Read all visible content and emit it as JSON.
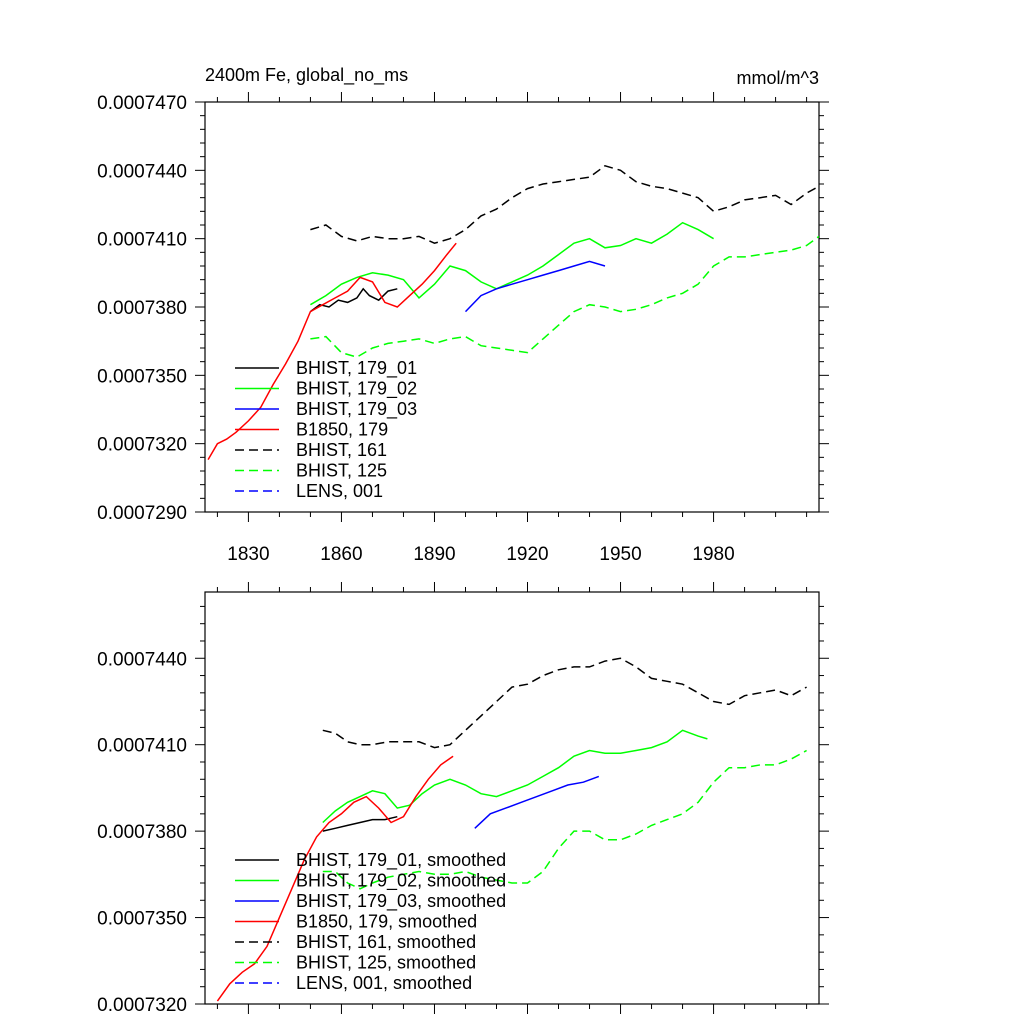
{
  "chart_data": [
    {
      "type": "line",
      "title": "2400m Fe, global_no_ms",
      "units": "mmol/m^3",
      "xlim": [
        1816,
        2014
      ],
      "ylim": [
        0.000729,
        0.000747
      ],
      "x_ticks": [
        1830,
        1860,
        1890,
        1920,
        1950,
        1980
      ],
      "x_tick_labels": [
        "1830",
        "1860",
        "1890",
        "1920",
        "1950",
        "1980"
      ],
      "y_ticks": [
        0.000729,
        0.000732,
        0.000735,
        0.000738,
        0.000741,
        0.000744,
        0.000747
      ],
      "y_tick_labels": [
        "0.0007290",
        "0.0007320",
        "0.0007350",
        "0.0007380",
        "0.0007410",
        "0.0007440",
        "0.0007470"
      ],
      "legend_position": "bottom-left",
      "series": [
        {
          "name": "BHIST, 179_01",
          "color": "#000000",
          "dash": "solid",
          "x": [
            1850,
            1853,
            1856,
            1859,
            1862,
            1865,
            1867,
            1869,
            1872,
            1875,
            1878
          ],
          "y": [
            0.0007378,
            0.0007381,
            0.000738,
            0.0007383,
            0.0007382,
            0.0007384,
            0.0007388,
            0.0007385,
            0.0007383,
            0.0007387,
            0.0007388
          ]
        },
        {
          "name": "BHIST, 179_02",
          "color": "#00ff00",
          "dash": "solid",
          "x": [
            1850,
            1855,
            1860,
            1865,
            1870,
            1875,
            1880,
            1885,
            1890,
            1895,
            1900,
            1905,
            1910,
            1915,
            1920,
            1925,
            1930,
            1935,
            1940,
            1945,
            1950,
            1955,
            1960,
            1965,
            1970,
            1975,
            1980
          ],
          "y": [
            0.0007381,
            0.0007385,
            0.000739,
            0.0007393,
            0.0007395,
            0.0007394,
            0.0007392,
            0.0007384,
            0.000739,
            0.0007398,
            0.0007396,
            0.0007391,
            0.0007388,
            0.0007391,
            0.0007394,
            0.0007398,
            0.0007403,
            0.0007408,
            0.000741,
            0.0007406,
            0.0007407,
            0.000741,
            0.0007408,
            0.0007412,
            0.0007417,
            0.0007414,
            0.000741
          ]
        },
        {
          "name": "BHIST, 179_03",
          "color": "#0000ff",
          "dash": "solid",
          "x": [
            1900,
            1905,
            1910,
            1915,
            1920,
            1925,
            1930,
            1935,
            1940,
            1945
          ],
          "y": [
            0.0007378,
            0.0007385,
            0.0007388,
            0.000739,
            0.0007392,
            0.0007394,
            0.0007396,
            0.0007398,
            0.00074,
            0.0007398
          ]
        },
        {
          "name": "B1850, 179",
          "color": "#ff0000",
          "dash": "solid",
          "x": [
            1817,
            1820,
            1823,
            1826,
            1830,
            1834,
            1838,
            1842,
            1846,
            1850,
            1854,
            1858,
            1862,
            1866,
            1870,
            1874,
            1878,
            1882,
            1886,
            1890,
            1894,
            1897
          ],
          "y": [
            0.0007313,
            0.000732,
            0.0007322,
            0.0007325,
            0.000733,
            0.0007336,
            0.0007346,
            0.0007355,
            0.0007365,
            0.0007378,
            0.0007381,
            0.0007384,
            0.0007387,
            0.0007393,
            0.0007391,
            0.0007382,
            0.000738,
            0.0007385,
            0.000739,
            0.0007396,
            0.0007403,
            0.0007408
          ]
        },
        {
          "name": "BHIST, 161",
          "color": "#000000",
          "dash": "dashed",
          "x": [
            1850,
            1855,
            1860,
            1865,
            1870,
            1875,
            1880,
            1885,
            1890,
            1895,
            1900,
            1905,
            1910,
            1915,
            1920,
            1925,
            1930,
            1935,
            1940,
            1945,
            1950,
            1955,
            1960,
            1965,
            1970,
            1975,
            1980,
            1985,
            1990,
            1995,
            2000,
            2005,
            2010,
            2014
          ],
          "y": [
            0.0007414,
            0.0007416,
            0.0007411,
            0.0007409,
            0.0007411,
            0.000741,
            0.000741,
            0.0007411,
            0.0007408,
            0.000741,
            0.0007414,
            0.000742,
            0.0007423,
            0.0007428,
            0.0007432,
            0.0007434,
            0.0007435,
            0.0007436,
            0.0007437,
            0.0007442,
            0.000744,
            0.0007435,
            0.0007433,
            0.0007432,
            0.000743,
            0.0007428,
            0.0007422,
            0.0007424,
            0.0007427,
            0.0007428,
            0.0007429,
            0.0007425,
            0.000743,
            0.0007433
          ]
        },
        {
          "name": "BHIST, 125",
          "color": "#00ff00",
          "dash": "dashed",
          "x": [
            1850,
            1855,
            1860,
            1865,
            1870,
            1875,
            1880,
            1885,
            1890,
            1895,
            1900,
            1905,
            1910,
            1915,
            1920,
            1925,
            1930,
            1935,
            1940,
            1945,
            1950,
            1955,
            1960,
            1965,
            1970,
            1975,
            1980,
            1985,
            1990,
            1995,
            2000,
            2005,
            2010,
            2014
          ],
          "y": [
            0.0007366,
            0.0007367,
            0.000736,
            0.0007358,
            0.0007362,
            0.0007364,
            0.0007365,
            0.0007366,
            0.0007364,
            0.0007366,
            0.0007367,
            0.0007363,
            0.0007362,
            0.0007361,
            0.000736,
            0.0007366,
            0.0007372,
            0.0007378,
            0.0007381,
            0.000738,
            0.0007378,
            0.0007379,
            0.0007381,
            0.0007384,
            0.0007386,
            0.000739,
            0.0007398,
            0.0007402,
            0.0007402,
            0.0007403,
            0.0007404,
            0.0007405,
            0.0007407,
            0.0007411
          ]
        },
        {
          "name": "LENS, 001",
          "color": "#0000ff",
          "dash": "dashed",
          "x": [],
          "y": []
        }
      ]
    },
    {
      "type": "line",
      "title": "",
      "xlim": [
        1816,
        2014
      ],
      "ylim": [
        0.000732,
        0.0007463
      ],
      "x_ticks": [
        1830,
        1860,
        1890,
        1920,
        1950,
        1980
      ],
      "x_tick_labels": [],
      "y_ticks": [
        0.000732,
        0.000735,
        0.000738,
        0.000741,
        0.000744
      ],
      "y_tick_labels": [
        "0.0007320",
        "0.0007350",
        "0.0007380",
        "0.0007410",
        "0.0007440"
      ],
      "legend_position": "bottom-left",
      "series": [
        {
          "name": "BHIST, 179_01, smoothed",
          "color": "#000000",
          "dash": "solid",
          "x": [
            1854,
            1858,
            1862,
            1866,
            1870,
            1874,
            1878
          ],
          "y": [
            0.000738,
            0.0007381,
            0.0007382,
            0.0007383,
            0.0007384,
            0.0007384,
            0.0007385
          ]
        },
        {
          "name": "BHIST, 179_02, smoothed",
          "color": "#00ff00",
          "dash": "solid",
          "x": [
            1854,
            1858,
            1862,
            1866,
            1870,
            1874,
            1878,
            1882,
            1886,
            1890,
            1895,
            1900,
            1905,
            1910,
            1915,
            1920,
            1925,
            1930,
            1935,
            1940,
            1945,
            1950,
            1955,
            1960,
            1965,
            1970,
            1975,
            1978
          ],
          "y": [
            0.0007383,
            0.0007387,
            0.000739,
            0.0007392,
            0.0007394,
            0.0007393,
            0.0007388,
            0.0007389,
            0.0007393,
            0.0007396,
            0.0007398,
            0.0007396,
            0.0007393,
            0.0007392,
            0.0007394,
            0.0007396,
            0.0007399,
            0.0007402,
            0.0007406,
            0.0007408,
            0.0007407,
            0.0007407,
            0.0007408,
            0.0007409,
            0.0007411,
            0.0007415,
            0.0007413,
            0.0007412
          ]
        },
        {
          "name": "BHIST, 179_03, smoothed",
          "color": "#0000ff",
          "dash": "solid",
          "x": [
            1903,
            1908,
            1913,
            1918,
            1923,
            1928,
            1933,
            1938,
            1943
          ],
          "y": [
            0.0007381,
            0.0007386,
            0.0007388,
            0.000739,
            0.0007392,
            0.0007394,
            0.0007396,
            0.0007397,
            0.0007399
          ]
        },
        {
          "name": "B1850, 179, smoothed",
          "color": "#ff0000",
          "dash": "solid",
          "x": [
            1820,
            1824,
            1828,
            1832,
            1836,
            1840,
            1844,
            1848,
            1852,
            1856,
            1860,
            1864,
            1868,
            1872,
            1876,
            1880,
            1884,
            1888,
            1892,
            1896
          ],
          "y": [
            0.0007321,
            0.0007327,
            0.0007331,
            0.0007334,
            0.000734,
            0.000735,
            0.000736,
            0.000737,
            0.0007378,
            0.0007383,
            0.0007386,
            0.000739,
            0.0007392,
            0.0007388,
            0.0007383,
            0.0007385,
            0.0007392,
            0.0007398,
            0.0007403,
            0.0007406
          ]
        },
        {
          "name": "BHIST, 161, smoothed",
          "color": "#000000",
          "dash": "dashed",
          "x": [
            1854,
            1858,
            1862,
            1866,
            1870,
            1875,
            1880,
            1885,
            1890,
            1895,
            1900,
            1905,
            1910,
            1915,
            1920,
            1925,
            1930,
            1935,
            1940,
            1945,
            1950,
            1955,
            1960,
            1965,
            1970,
            1975,
            1980,
            1985,
            1990,
            1995,
            2000,
            2005,
            2010
          ],
          "y": [
            0.0007415,
            0.0007414,
            0.0007411,
            0.000741,
            0.000741,
            0.0007411,
            0.0007411,
            0.0007411,
            0.0007409,
            0.000741,
            0.0007415,
            0.000742,
            0.0007425,
            0.000743,
            0.0007431,
            0.0007434,
            0.0007436,
            0.0007437,
            0.0007437,
            0.0007439,
            0.000744,
            0.0007437,
            0.0007433,
            0.0007432,
            0.0007431,
            0.0007428,
            0.0007425,
            0.0007424,
            0.0007427,
            0.0007428,
            0.0007429,
            0.0007427,
            0.000743
          ]
        },
        {
          "name": "BHIST, 125, smoothed",
          "color": "#00ff00",
          "dash": "dashed",
          "x": [
            1854,
            1858,
            1862,
            1866,
            1870,
            1875,
            1880,
            1885,
            1890,
            1895,
            1900,
            1905,
            1910,
            1915,
            1920,
            1925,
            1930,
            1935,
            1940,
            1945,
            1950,
            1955,
            1960,
            1965,
            1970,
            1975,
            1980,
            1985,
            1990,
            1995,
            2000,
            2005,
            2010
          ],
          "y": [
            0.0007366,
            0.0007366,
            0.0007362,
            0.000736,
            0.0007362,
            0.0007364,
            0.0007365,
            0.0007366,
            0.0007365,
            0.0007365,
            0.0007366,
            0.0007364,
            0.0007363,
            0.0007362,
            0.0007362,
            0.0007366,
            0.0007374,
            0.000738,
            0.000738,
            0.0007377,
            0.0007377,
            0.0007379,
            0.0007382,
            0.0007384,
            0.0007386,
            0.000739,
            0.0007397,
            0.0007402,
            0.0007402,
            0.0007403,
            0.0007403,
            0.0007405,
            0.0007408
          ]
        },
        {
          "name": "LENS, 001, smoothed",
          "color": "#0000ff",
          "dash": "dashed",
          "x": [],
          "y": []
        }
      ]
    }
  ]
}
